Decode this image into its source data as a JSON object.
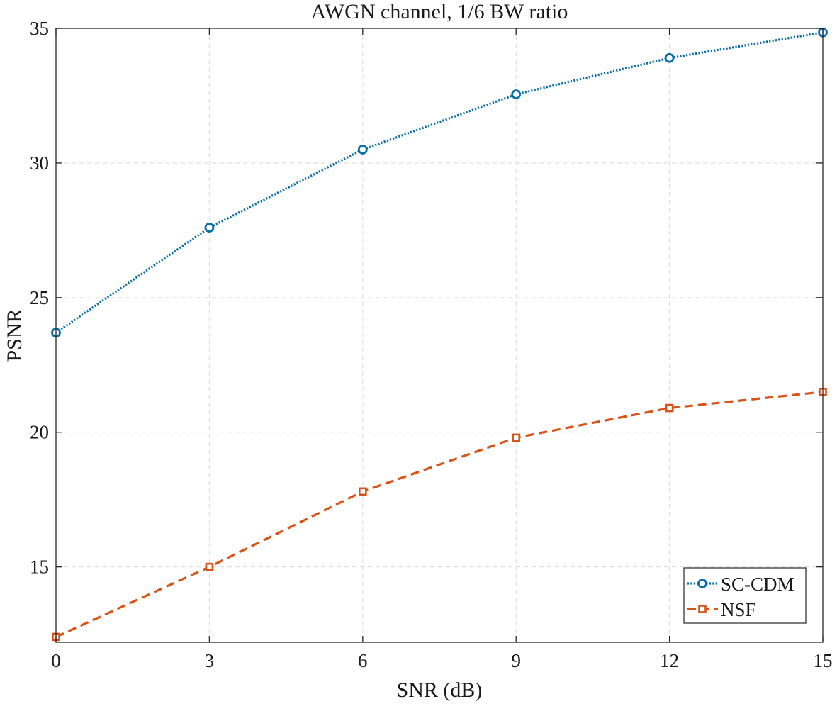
{
  "chart_data": {
    "type": "line",
    "title": "AWGN channel, 1/6 BW ratio",
    "xlabel": "SNR (dB)",
    "ylabel": "PSNR",
    "xlim": [
      0,
      15
    ],
    "ylim": [
      12.2,
      35
    ],
    "xticks": [
      0,
      3,
      6,
      9,
      12,
      15
    ],
    "yticks": [
      15,
      20,
      25,
      30,
      35
    ],
    "grid": true,
    "legend_position": "bottom-right",
    "x": [
      0,
      3,
      6,
      9,
      12,
      15
    ],
    "series": [
      {
        "name": "SC-CDM",
        "values": [
          23.7,
          27.6,
          30.5,
          32.55,
          33.9,
          34.85
        ],
        "color": "#0a6fa8",
        "line_style": "dotted",
        "marker": "circle"
      },
      {
        "name": "NSF",
        "values": [
          12.4,
          15.0,
          17.8,
          19.8,
          20.9,
          21.5
        ],
        "color": "#d95319",
        "line_style": "dashed",
        "marker": "square"
      }
    ]
  }
}
